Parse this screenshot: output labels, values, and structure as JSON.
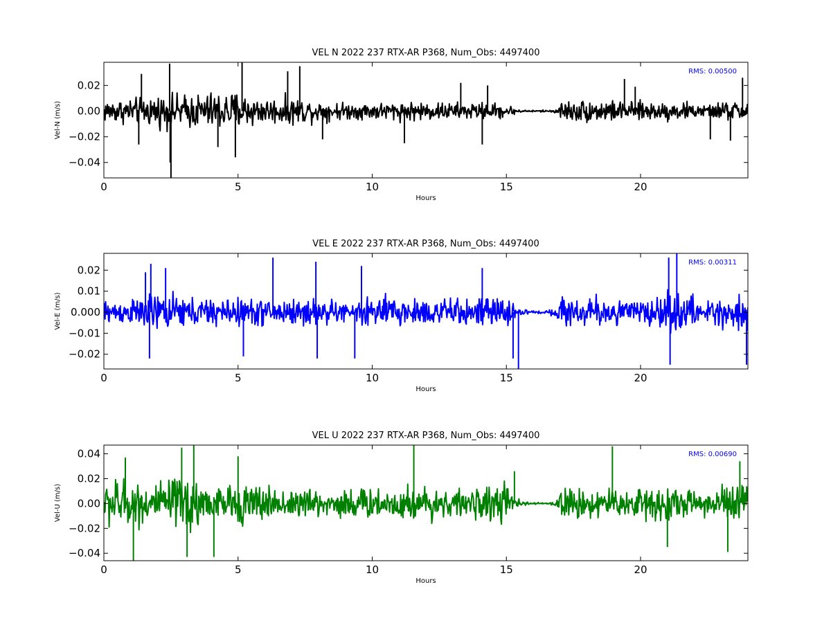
{
  "chart_data": [
    {
      "type": "line",
      "title": "VEL N 2022 237 RTX-AR  P368, Num_Obs: 4497400",
      "xlabel": "Hours",
      "ylabel": "Vel-N (m/s)",
      "xlim": [
        0,
        24
      ],
      "ylim": [
        -0.052,
        0.038
      ],
      "xticks": [
        0,
        5,
        10,
        15,
        20
      ],
      "xtick_labels": [
        "0",
        "5",
        "10",
        "15",
        "20"
      ],
      "yticks": [
        -0.04,
        -0.02,
        0.0,
        0.02
      ],
      "ytick_labels": [
        "−0.04",
        "−0.02",
        "0.00",
        "0.02"
      ],
      "grid": false,
      "annotation": "RMS:  0.00500",
      "color": "#000000",
      "annotation_color": "#0000ff",
      "envelope": {
        "hours": [
          0,
          1,
          2,
          3,
          4,
          4.5,
          5,
          5.5,
          6,
          7,
          8,
          9,
          10,
          11,
          12,
          13,
          14,
          15,
          15.3,
          15.6,
          16,
          16.5,
          16.9,
          17,
          18,
          19,
          19.5,
          20,
          21,
          22,
          22.5,
          23,
          24
        ],
        "amplitude": [
          0.011,
          0.012,
          0.015,
          0.016,
          0.018,
          0.019,
          0.018,
          0.015,
          0.012,
          0.013,
          0.01,
          0.008,
          0.008,
          0.009,
          0.009,
          0.008,
          0.008,
          0.007,
          0.003,
          0.001,
          0.001,
          0.001,
          0.002,
          0.009,
          0.011,
          0.01,
          0.008,
          0.009,
          0.009,
          0.008,
          0.005,
          0.009,
          0.01
        ]
      },
      "spikes": [
        {
          "x": 1.3,
          "y": -0.026
        },
        {
          "x": 1.4,
          "y": 0.029
        },
        {
          "x": 2.45,
          "y": 0.037
        },
        {
          "x": 2.47,
          "y": -0.04
        },
        {
          "x": 2.5,
          "y": -0.052
        },
        {
          "x": 4.25,
          "y": -0.028
        },
        {
          "x": 4.9,
          "y": -0.036
        },
        {
          "x": 5.15,
          "y": 0.038
        },
        {
          "x": 6.85,
          "y": 0.031
        },
        {
          "x": 7.3,
          "y": 0.035
        },
        {
          "x": 8.15,
          "y": -0.022
        },
        {
          "x": 11.2,
          "y": -0.025
        },
        {
          "x": 13.3,
          "y": 0.022
        },
        {
          "x": 14.1,
          "y": -0.026
        },
        {
          "x": 14.3,
          "y": 0.02
        },
        {
          "x": 19.4,
          "y": 0.025
        },
        {
          "x": 19.8,
          "y": 0.019
        },
        {
          "x": 22.6,
          "y": -0.022
        },
        {
          "x": 23.35,
          "y": -0.023
        },
        {
          "x": 23.8,
          "y": 0.026
        }
      ]
    },
    {
      "type": "line",
      "title": "VEL E 2022 237 RTX-AR  P368, Num_Obs: 4497400",
      "xlabel": "Hours",
      "ylabel": "Vel-E (m/s)",
      "xlim": [
        0,
        24
      ],
      "ylim": [
        -0.027,
        0.028
      ],
      "xticks": [
        0,
        5,
        10,
        15,
        20
      ],
      "xtick_labels": [
        "0",
        "5",
        "10",
        "15",
        "20"
      ],
      "yticks": [
        -0.02,
        -0.01,
        0.0,
        0.01,
        0.02
      ],
      "ytick_labels": [
        "−0.02",
        "−0.01",
        "0.000",
        "0.01",
        "0.02"
      ],
      "grid": false,
      "annotation": "RMS:  0.00311",
      "color": "#0000ff",
      "annotation_color": "#0000ff",
      "envelope": {
        "hours": [
          0,
          1,
          1.5,
          2,
          3,
          4,
          5,
          6,
          7,
          8,
          9,
          9.3,
          9.5,
          10,
          11,
          12,
          13,
          14,
          15,
          15.4,
          15.6,
          16,
          16.5,
          16.9,
          17,
          18,
          19,
          19.5,
          20,
          21,
          22,
          22.5,
          23,
          24
        ],
        "amplitude": [
          0.007,
          0.007,
          0.01,
          0.011,
          0.009,
          0.008,
          0.008,
          0.008,
          0.008,
          0.008,
          0.006,
          0.003,
          0.009,
          0.01,
          0.009,
          0.008,
          0.008,
          0.008,
          0.008,
          0.004,
          0.002,
          0.001,
          0.001,
          0.003,
          0.009,
          0.009,
          0.008,
          0.007,
          0.008,
          0.011,
          0.009,
          0.006,
          0.011,
          0.01
        ]
      },
      "spikes": [
        {
          "x": 1.55,
          "y": 0.019
        },
        {
          "x": 1.7,
          "y": -0.022
        },
        {
          "x": 1.75,
          "y": 0.023
        },
        {
          "x": 2.3,
          "y": 0.021
        },
        {
          "x": 5.2,
          "y": -0.021
        },
        {
          "x": 6.3,
          "y": 0.026
        },
        {
          "x": 7.9,
          "y": 0.024
        },
        {
          "x": 7.95,
          "y": -0.022
        },
        {
          "x": 9.35,
          "y": -0.022
        },
        {
          "x": 9.6,
          "y": 0.022
        },
        {
          "x": 14.1,
          "y": 0.021
        },
        {
          "x": 15.25,
          "y": -0.022
        },
        {
          "x": 15.45,
          "y": -0.027
        },
        {
          "x": 21.05,
          "y": 0.026
        },
        {
          "x": 21.1,
          "y": -0.025
        },
        {
          "x": 21.35,
          "y": 0.028
        },
        {
          "x": 23.95,
          "y": -0.025
        }
      ]
    },
    {
      "type": "line",
      "title": "VEL U 2022 237 RTX-AR  P368, Num_Obs: 4497400",
      "xlabel": "Hours",
      "ylabel": "Vel-U (m/s)",
      "xlim": [
        0,
        24
      ],
      "ylim": [
        -0.046,
        0.047
      ],
      "xticks": [
        0,
        5,
        10,
        15,
        20
      ],
      "xtick_labels": [
        "0",
        "5",
        "10",
        "15",
        "20"
      ],
      "yticks": [
        -0.04,
        -0.02,
        0.0,
        0.02,
        0.04
      ],
      "ytick_labels": [
        "−0.04",
        "−0.02",
        "0.00",
        "0.02",
        "0.04"
      ],
      "grid": false,
      "annotation": "RMS:  0.00690",
      "color": "#008000",
      "annotation_color": "#0000ff",
      "envelope": {
        "hours": [
          0,
          0.5,
          1,
          2,
          3,
          3.5,
          4,
          5,
          6,
          7,
          8,
          9,
          10,
          11,
          11.5,
          12,
          13,
          14,
          14.5,
          15,
          15.4,
          15.6,
          16,
          16.5,
          16.9,
          17,
          18,
          19,
          19.5,
          20,
          21,
          22,
          22.5,
          23,
          23.5,
          24
        ],
        "amplitude": [
          0.022,
          0.025,
          0.022,
          0.02,
          0.028,
          0.03,
          0.015,
          0.02,
          0.017,
          0.017,
          0.013,
          0.016,
          0.015,
          0.018,
          0.02,
          0.016,
          0.014,
          0.013,
          0.019,
          0.02,
          0.005,
          0.002,
          0.001,
          0.001,
          0.003,
          0.015,
          0.016,
          0.015,
          0.012,
          0.017,
          0.02,
          0.014,
          0.01,
          0.017,
          0.023,
          0.02
        ]
      },
      "spikes": [
        {
          "x": 0.8,
          "y": 0.037
        },
        {
          "x": 1.1,
          "y": -0.046
        },
        {
          "x": 2.9,
          "y": 0.045
        },
        {
          "x": 3.1,
          "y": -0.043
        },
        {
          "x": 3.35,
          "y": 0.047
        },
        {
          "x": 4.1,
          "y": -0.043
        },
        {
          "x": 5.0,
          "y": 0.038
        },
        {
          "x": 11.55,
          "y": 0.047
        },
        {
          "x": 15.3,
          "y": 0.026
        },
        {
          "x": 18.95,
          "y": 0.046
        },
        {
          "x": 21.0,
          "y": -0.035
        },
        {
          "x": 23.25,
          "y": -0.039
        },
        {
          "x": 23.7,
          "y": 0.034
        }
      ]
    }
  ]
}
